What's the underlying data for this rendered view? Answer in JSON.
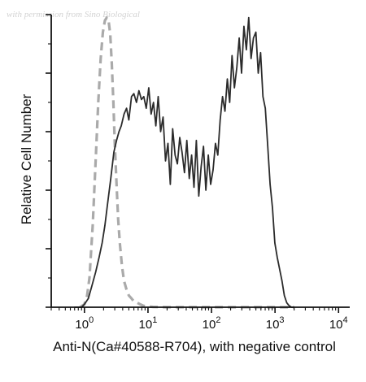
{
  "watermark": "with permission from Sino Biological",
  "colors": {
    "sample": "#2b2b2b",
    "negative_control": "#aaaaaa",
    "axis": "#111111"
  },
  "chart_data": {
    "type": "line",
    "title": "",
    "xlabel": "Anti-N(Ca#40588-R704), with negative control",
    "ylabel": "Relative Cell Number",
    "xscale": "log",
    "xlim": [
      0.3,
      15000
    ],
    "ylim": [
      0,
      100
    ],
    "grid": false,
    "legend": "none",
    "xticks": [
      {
        "value": 1,
        "base": "10",
        "exp": "0"
      },
      {
        "value": 10,
        "base": "10",
        "exp": "1"
      },
      {
        "value": 100,
        "base": "10",
        "exp": "2"
      },
      {
        "value": 1000,
        "base": "10",
        "exp": "3"
      },
      {
        "value": 10000,
        "base": "10",
        "exp": "4"
      }
    ],
    "series": [
      {
        "style": "solid",
        "x": [
          0.7,
          0.9,
          1.0,
          1.15,
          1.3,
          1.5,
          1.7,
          1.9,
          2.1,
          2.3,
          2.6,
          2.9,
          3.2,
          3.5,
          3.8,
          4.2,
          4.6,
          5.0,
          5.5,
          6.0,
          6.6,
          7.2,
          7.9,
          8.6,
          9.4,
          10.3,
          11.2,
          12.2,
          13.3,
          14.5,
          15.8,
          17.3,
          18.9,
          20.6,
          22.5,
          24.5,
          26.7,
          29,
          31.6,
          34.4,
          37.5,
          40.9,
          44.6,
          48.6,
          53,
          57.8,
          63,
          68.7,
          74.9,
          81.6,
          89,
          97,
          105.8,
          115.3,
          125.7,
          137,
          149.3,
          162.7,
          177.4,
          193.3,
          210.7,
          229.7,
          250.3,
          272.9,
          297.4,
          324.2,
          353.4,
          385.2,
          419.9,
          457.7,
          498.9,
          543.8,
          592.7,
          646,
          704.2,
          767.6,
          836.7,
          912,
          994.1,
          1083.6,
          1181.1,
          1287.4,
          1403.3,
          1529.6,
          1667.2,
          1817.3,
          2000
        ],
        "y": [
          0,
          0,
          1,
          3,
          7,
          12,
          17,
          22,
          28,
          35,
          44,
          53,
          57,
          60,
          62,
          66,
          68,
          64,
          72,
          73,
          70,
          74,
          71,
          72,
          68,
          75,
          66,
          70,
          62,
          72,
          60,
          65,
          50,
          56,
          42,
          61,
          52,
          49,
          58,
          53,
          46,
          57,
          44,
          52,
          41,
          57,
          38,
          48,
          55,
          40,
          52,
          42,
          47,
          56,
          52,
          64,
          72,
          67,
          78,
          70,
          86,
          75,
          82,
          92,
          80,
          96,
          88,
          99,
          85,
          92,
          94,
          80,
          87,
          72,
          68,
          55,
          42,
          34,
          22,
          17,
          13,
          9,
          4,
          1.5,
          0.5,
          0,
          0
        ]
      },
      {
        "style": "dashed",
        "x": [
          0.85,
          1.0,
          1.1,
          1.2,
          1.35,
          1.5,
          1.65,
          1.8,
          1.95,
          2.1,
          2.25,
          2.4,
          2.55,
          2.7,
          2.85,
          3.0,
          3.2,
          3.4,
          3.6,
          3.9,
          4.2,
          4.6,
          5.0,
          5.5,
          6.0,
          6.8,
          7.5,
          8.5,
          10,
          12,
          20,
          50,
          200,
          1000,
          2000
        ],
        "y": [
          0,
          1,
          4,
          10,
          28,
          50,
          70,
          85,
          94,
          98,
          99,
          98,
          93,
          83,
          70,
          56,
          42,
          30,
          22,
          14,
          9,
          6,
          4,
          3,
          2,
          1.5,
          1,
          0.5,
          0.3,
          0.1,
          0,
          0,
          0,
          0,
          0
        ]
      }
    ]
  }
}
